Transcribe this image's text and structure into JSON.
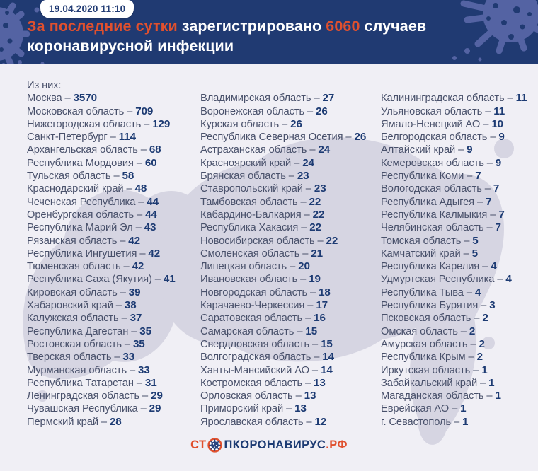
{
  "colors": {
    "accent": "#e0502e",
    "header_bg": "#203a72",
    "badge_text": "#223c74",
    "name_text": "#49516b",
    "value_text": "#1d3b73",
    "body_bg": "#f0eff5",
    "map_fill": "#d6d5e2",
    "decor_fill": "#5463a3"
  },
  "header": {
    "highlight": "За последние сутки",
    "middle": "зарегистрировано",
    "count": "6060",
    "suffix": "случаев",
    "line2": "коронавирусной инфекции"
  },
  "footer": {
    "logo_prefix": "СТ",
    "logo_icon": "virus-icon",
    "logo_middle": "ПКОРОНАВИРУС",
    "logo_suffix": ".РФ"
  },
  "chart_data": {
    "type": "table",
    "title": "За последние сутки зарегистрировано 6060 случаев коронавирусной инфекции",
    "timestamp": "19.04.2020 11:10",
    "total_new_cases": 6060,
    "intro": "Из них:",
    "separator": "–",
    "columns": [
      [
        {
          "region": "Москва",
          "value": 3570
        },
        {
          "region": "Московская область",
          "value": 709
        },
        {
          "region": "Нижегородская область",
          "value": 129
        },
        {
          "region": "Санкт-Петербург",
          "value": 114
        },
        {
          "region": "Архангельская область",
          "value": 68
        },
        {
          "region": "Республика Мордовия",
          "value": 60
        },
        {
          "region": "Тульская область",
          "value": 58
        },
        {
          "region": "Краснодарский край",
          "value": 48
        },
        {
          "region": "Чеченская Республика",
          "value": 44
        },
        {
          "region": "Оренбургская область",
          "value": 44
        },
        {
          "region": "Республика Марий Эл",
          "value": 43
        },
        {
          "region": "Рязанская область",
          "value": 42
        },
        {
          "region": "Республика Ингушетия",
          "value": 42
        },
        {
          "region": "Тюменская область",
          "value": 42
        },
        {
          "region": "Республика Саха (Якутия)",
          "value": 41
        },
        {
          "region": "Кировская область",
          "value": 39
        },
        {
          "region": "Хабаровский край",
          "value": 38
        },
        {
          "region": "Калужская область",
          "value": 37
        },
        {
          "region": "Республика Дагестан",
          "value": 35
        },
        {
          "region": "Ростовская область",
          "value": 35
        },
        {
          "region": "Тверская область",
          "value": 33
        },
        {
          "region": "Мурманская область",
          "value": 33
        },
        {
          "region": "Республика Татарстан",
          "value": 31
        },
        {
          "region": "Ленинградская область",
          "value": 29
        },
        {
          "region": "Чувашская Республика",
          "value": 29
        },
        {
          "region": "Пермский край",
          "value": 28
        }
      ],
      [
        {
          "region": "Владимирская область",
          "value": 27
        },
        {
          "region": "Воронежская область",
          "value": 26
        },
        {
          "region": "Курская область",
          "value": 26
        },
        {
          "region": "Республика Северная Осетия",
          "value": 26
        },
        {
          "region": "Астраханская область",
          "value": 24
        },
        {
          "region": "Красноярский край",
          "value": 24
        },
        {
          "region": "Брянская область",
          "value": 23
        },
        {
          "region": "Ставропольский край",
          "value": 23
        },
        {
          "region": "Тамбовская область",
          "value": 22
        },
        {
          "region": "Кабардино-Балкария",
          "value": 22
        },
        {
          "region": "Республика Хакасия",
          "value": 22
        },
        {
          "region": "Новосибирская область",
          "value": 22
        },
        {
          "region": "Смоленская область",
          "value": 21
        },
        {
          "region": "Липецкая область",
          "value": 20
        },
        {
          "region": "Ивановская область",
          "value": 19
        },
        {
          "region": "Новгородская область",
          "value": 18
        },
        {
          "region": "Карачаево-Черкессия",
          "value": 17
        },
        {
          "region": "Саратовская область",
          "value": 16
        },
        {
          "region": "Самарская область",
          "value": 15
        },
        {
          "region": "Свердловская область",
          "value": 15
        },
        {
          "region": "Волгоградская область",
          "value": 14
        },
        {
          "region": "Ханты-Мансийский АО",
          "value": 14
        },
        {
          "region": "Костромская область",
          "value": 13
        },
        {
          "region": "Орловская область",
          "value": 13
        },
        {
          "region": "Приморский край",
          "value": 13
        },
        {
          "region": "Ярославская область",
          "value": 12
        }
      ],
      [
        {
          "region": "Калининградская область",
          "value": 11
        },
        {
          "region": "Ульяновская область",
          "value": 11
        },
        {
          "region": "Ямало-Ненецкий АО",
          "value": 10
        },
        {
          "region": "Белгородская область",
          "value": 9
        },
        {
          "region": "Алтайский край",
          "value": 9
        },
        {
          "region": "Кемеровская область",
          "value": 9
        },
        {
          "region": "Республика Коми",
          "value": 7
        },
        {
          "region": "Вологодская область",
          "value": 7
        },
        {
          "region": "Республика Адыгея",
          "value": 7
        },
        {
          "region": "Республика Калмыкия",
          "value": 7
        },
        {
          "region": "Челябинская область",
          "value": 7
        },
        {
          "region": "Томская область",
          "value": 5
        },
        {
          "region": "Камчатский край",
          "value": 5
        },
        {
          "region": "Республика Карелия",
          "value": 4
        },
        {
          "region": "Удмуртская Республика",
          "value": 4
        },
        {
          "region": "Республика Тыва",
          "value": 4
        },
        {
          "region": "Республика Бурятия",
          "value": 3
        },
        {
          "region": "Псковская область",
          "value": 2
        },
        {
          "region": "Омская область",
          "value": 2
        },
        {
          "region": "Амурская область",
          "value": 2
        },
        {
          "region": "Республика Крым",
          "value": 2
        },
        {
          "region": "Иркутская область",
          "value": 1
        },
        {
          "region": "Забайкальский край",
          "value": 1
        },
        {
          "region": "Магаданская область",
          "value": 1
        },
        {
          "region": "Еврейская АО",
          "value": 1
        },
        {
          "region": "г. Севастополь",
          "value": 1
        }
      ]
    ]
  }
}
